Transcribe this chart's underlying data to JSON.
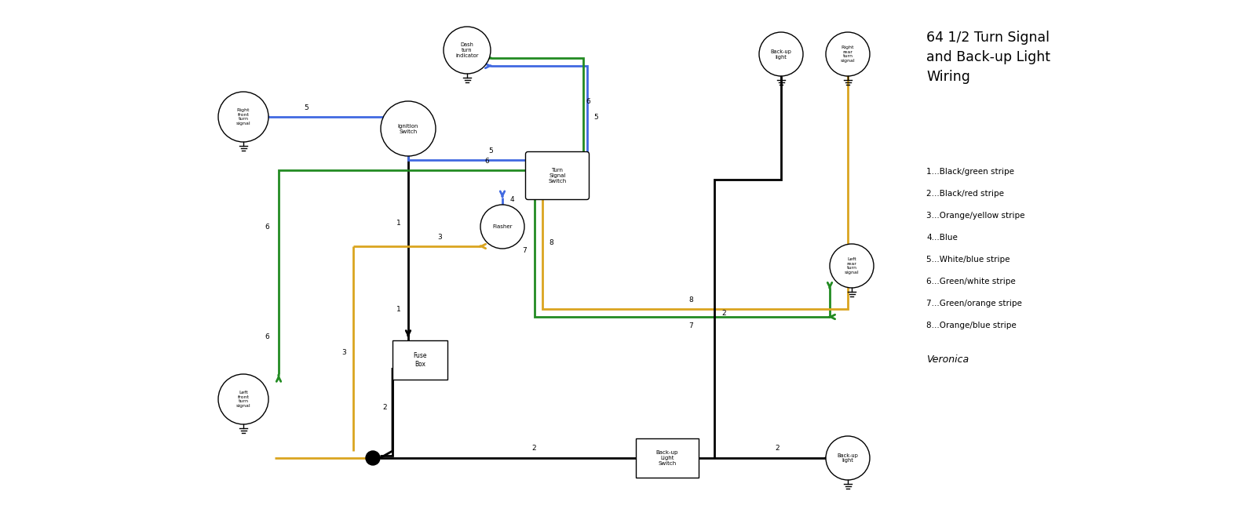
{
  "title": "64 1/2 Turn Signal\nand Back-up Light\nWiring",
  "legend_items": [
    "1...Black/green stripe",
    "2...Black/red stripe",
    "3...Orange/yellow stripe",
    "4...Blue",
    "5...White/blue stripe",
    "6...Green/white stripe",
    "7...Green/orange stripe",
    "8...Orange/blue stripe"
  ],
  "signature": "Veronica",
  "bg_color": "#FFFFFF"
}
